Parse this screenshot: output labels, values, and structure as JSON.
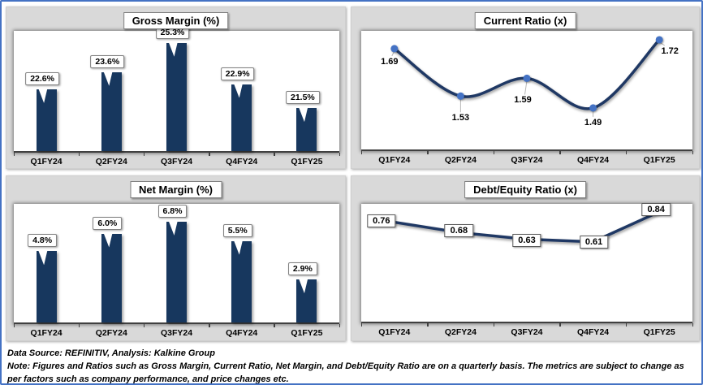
{
  "footer": {
    "source_line": "Data Source: REFINITIV, Analysis: Kalkine Group",
    "note_line": "Note: Figures and Ratios such as Gross Margin, Current Ratio, Net Margin, and Debt/Equity Ratio are on a quarterly basis. The metrics are subject to change as per factors such as company performance, and price changes etc."
  },
  "colors": {
    "frame_border": "#4472C4",
    "panel_background": "#D9D9D9",
    "bar_fill": "#17375E",
    "line_stroke": "#1F3864",
    "marker_fill": "#4472C4",
    "axis": "#404040"
  },
  "chart_data": [
    {
      "id": "gross-margin",
      "type": "bar",
      "title": "Gross Margin (%)",
      "categories": [
        "Q1FY24",
        "Q2FY24",
        "Q3FY24",
        "Q4FY24",
        "Q1FY25"
      ],
      "values": [
        22.6,
        23.6,
        25.3,
        22.9,
        21.5
      ],
      "labels": [
        "22.6%",
        "23.6%",
        "25.3%",
        "22.9%",
        "21.5%"
      ],
      "ylim": [
        19,
        26
      ],
      "xlabel": "",
      "ylabel": "",
      "grid": false,
      "legend": "none",
      "label_style": "callout"
    },
    {
      "id": "current-ratio",
      "type": "line",
      "curve": "smooth",
      "markers": true,
      "title": "Current Ratio (x)",
      "categories": [
        "Q1FY24",
        "Q2FY24",
        "Q3FY24",
        "Q4FY24",
        "Q1FY25"
      ],
      "values": [
        1.69,
        1.53,
        1.59,
        1.49,
        1.72
      ],
      "labels": [
        "1.69",
        "1.53",
        "1.59",
        "1.49",
        "1.72"
      ],
      "ylim": [
        1.35,
        1.75
      ],
      "xlabel": "",
      "ylabel": "",
      "grid": false,
      "legend": "none",
      "label_style": "plain"
    },
    {
      "id": "net-margin",
      "type": "bar",
      "title": "Net Margin (%)",
      "categories": [
        "Q1FY24",
        "Q2FY24",
        "Q3FY24",
        "Q4FY24",
        "Q1FY25"
      ],
      "values": [
        4.8,
        6.0,
        6.8,
        5.5,
        2.9
      ],
      "labels": [
        "4.8%",
        "6.0%",
        "6.8%",
        "5.5%",
        "2.9%"
      ],
      "ylim": [
        0,
        8
      ],
      "xlabel": "",
      "ylabel": "",
      "grid": false,
      "legend": "none",
      "label_style": "callout"
    },
    {
      "id": "debt-equity",
      "type": "line",
      "curve": "straight",
      "markers": false,
      "title": "Debt/Equity Ratio (x)",
      "categories": [
        "Q1FY24",
        "Q2FY24",
        "Q3FY24",
        "Q4FY24",
        "Q1FY25"
      ],
      "values": [
        0.76,
        0.68,
        0.63,
        0.61,
        0.84
      ],
      "labels": [
        "0.76",
        "0.68",
        "0.63",
        "0.61",
        "0.84"
      ],
      "ylim": [
        0,
        0.9
      ],
      "xlabel": "",
      "ylabel": "",
      "grid": false,
      "legend": "none",
      "label_style": "boxed"
    }
  ]
}
